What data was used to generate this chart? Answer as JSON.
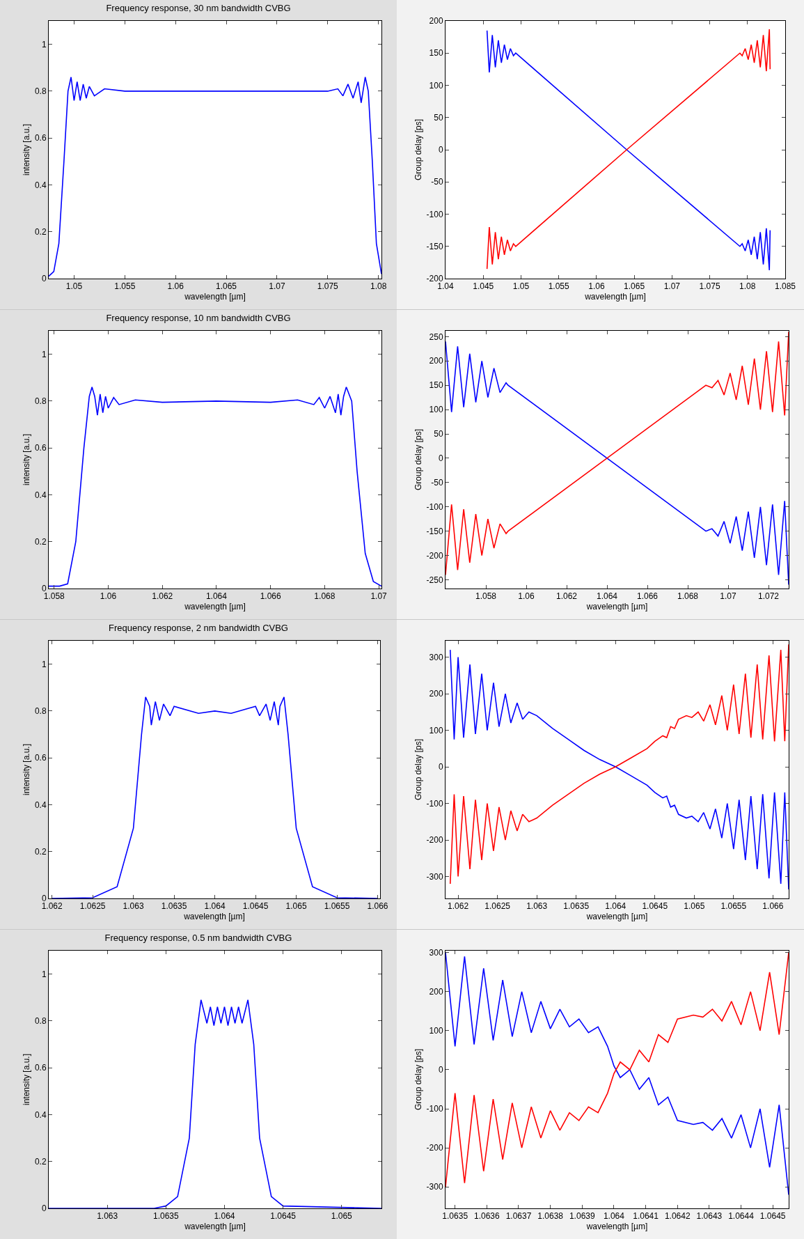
{
  "chart_data": [
    {
      "type": "line",
      "title": "Frequency response, 30 nm bandwidth CVBG",
      "xlabel": "wavelength [µm]",
      "ylabel": "intensity [a.u.]",
      "xlim": [
        1.0475,
        1.0803
      ],
      "xticks": [
        1.05,
        1.055,
        1.06,
        1.065,
        1.07,
        1.075,
        1.08
      ],
      "ylim": [
        0,
        1.1
      ],
      "yticks": [
        0,
        0.2,
        0.4,
        0.6,
        0.8,
        1
      ],
      "x": [
        1.0475,
        1.048,
        1.0485,
        1.049,
        1.0494,
        1.0497,
        1.05,
        1.0503,
        1.0506,
        1.0509,
        1.0512,
        1.0515,
        1.052,
        1.053,
        1.055,
        1.065,
        1.075,
        1.076,
        1.0765,
        1.077,
        1.0775,
        1.078,
        1.0783,
        1.0787,
        1.079,
        1.0794,
        1.0798,
        1.0803
      ],
      "series": [
        {
          "color": "#0000ff",
          "values": [
            0.01,
            0.03,
            0.15,
            0.5,
            0.8,
            0.86,
            0.76,
            0.84,
            0.76,
            0.83,
            0.77,
            0.82,
            0.78,
            0.81,
            0.8,
            0.8,
            0.8,
            0.81,
            0.78,
            0.83,
            0.77,
            0.84,
            0.75,
            0.86,
            0.8,
            0.5,
            0.15,
            0.02
          ]
        }
      ]
    },
    {
      "type": "line",
      "xlabel": "wavelength [µm]",
      "ylabel": "Group delay [ps]",
      "xlim": [
        1.04,
        1.085
      ],
      "xticks": [
        1.04,
        1.045,
        1.05,
        1.055,
        1.06,
        1.065,
        1.07,
        1.075,
        1.08,
        1.085
      ],
      "ylim": [
        -200,
        200
      ],
      "yticks": [
        -200,
        -150,
        -100,
        -50,
        0,
        50,
        100,
        150,
        200
      ],
      "x": [
        1.0455,
        1.0458,
        1.0462,
        1.0466,
        1.047,
        1.0474,
        1.0478,
        1.0482,
        1.0486,
        1.049,
        1.0493,
        1.064,
        1.079,
        1.0793,
        1.0797,
        1.0801,
        1.0805,
        1.0809,
        1.0813,
        1.0817,
        1.0821,
        1.0825,
        1.0829,
        1.083
      ],
      "series": [
        {
          "color": "#0000ff",
          "values": [
            185,
            120,
            178,
            128,
            170,
            135,
            163,
            140,
            157,
            146,
            150,
            0,
            -150,
            -146,
            -157,
            -140,
            -163,
            -135,
            -170,
            -128,
            -178,
            -122,
            -187,
            -125
          ]
        },
        {
          "color": "#ff0000",
          "values": [
            -185,
            -120,
            -178,
            -128,
            -170,
            -135,
            -163,
            -140,
            -157,
            -146,
            -150,
            0,
            150,
            146,
            157,
            140,
            163,
            135,
            170,
            128,
            178,
            122,
            187,
            125
          ]
        }
      ]
    },
    {
      "type": "line",
      "title": "Frequency response, 10 nm bandwidth CVBG",
      "xlabel": "wavelength [µm]",
      "ylabel": "intensity [a.u.]",
      "xlim": [
        1.0578,
        1.0701
      ],
      "xticks": [
        1.058,
        1.06,
        1.062,
        1.064,
        1.066,
        1.068,
        1.07
      ],
      "ylim": [
        0,
        1.1
      ],
      "yticks": [
        0,
        0.2,
        0.4,
        0.6,
        0.8,
        1
      ],
      "x": [
        1.0578,
        1.0582,
        1.0585,
        1.0588,
        1.0591,
        1.0593,
        1.0594,
        1.0595,
        1.0596,
        1.0597,
        1.0598,
        1.0599,
        1.06,
        1.0602,
        1.0604,
        1.061,
        1.062,
        1.064,
        1.066,
        1.067,
        1.0676,
        1.0678,
        1.068,
        1.0682,
        1.0684,
        1.0685,
        1.0686,
        1.0687,
        1.0688,
        1.069,
        1.0692,
        1.0695,
        1.0698,
        1.0701
      ],
      "series": [
        {
          "color": "#0000ff",
          "values": [
            0.01,
            0.01,
            0.02,
            0.2,
            0.6,
            0.82,
            0.86,
            0.82,
            0.74,
            0.83,
            0.75,
            0.82,
            0.77,
            0.815,
            0.785,
            0.805,
            0.795,
            0.8,
            0.795,
            0.805,
            0.785,
            0.815,
            0.77,
            0.82,
            0.75,
            0.83,
            0.74,
            0.82,
            0.86,
            0.8,
            0.5,
            0.15,
            0.03,
            0.01
          ]
        }
      ]
    },
    {
      "type": "line",
      "xlabel": "wavelength [µm]",
      "ylabel": "Group delay [ps]",
      "xlim": [
        1.056,
        1.073
      ],
      "xticks": [
        1.058,
        1.06,
        1.062,
        1.064,
        1.066,
        1.068,
        1.07,
        1.072
      ],
      "ylim": [
        -268,
        262
      ],
      "yticks": [
        -250,
        -200,
        -150,
        -100,
        -50,
        0,
        50,
        100,
        150,
        200,
        250
      ],
      "x": [
        1.056,
        1.0563,
        1.0566,
        1.0569,
        1.0572,
        1.0575,
        1.0578,
        1.0581,
        1.0584,
        1.0587,
        1.059,
        1.0591,
        1.064,
        1.0689,
        1.0692,
        1.0695,
        1.0698,
        1.0701,
        1.0704,
        1.0707,
        1.071,
        1.0713,
        1.0716,
        1.0719,
        1.0722,
        1.0725,
        1.0728,
        1.073
      ],
      "series": [
        {
          "color": "#0000ff",
          "values": [
            240,
            95,
            230,
            105,
            215,
            115,
            200,
            125,
            185,
            135,
            155,
            150,
            0,
            -150,
            -145,
            -160,
            -130,
            -175,
            -120,
            -190,
            -110,
            -205,
            -100,
            -220,
            -95,
            -240,
            -88,
            -260
          ]
        },
        {
          "color": "#ff0000",
          "values": [
            -240,
            -95,
            -230,
            -105,
            -215,
            -115,
            -200,
            -125,
            -185,
            -135,
            -155,
            -150,
            0,
            150,
            145,
            160,
            130,
            175,
            120,
            190,
            110,
            205,
            100,
            220,
            95,
            240,
            88,
            260
          ]
        }
      ]
    },
    {
      "type": "line",
      "title": "Frequency response, 2 nm bandwidth CVBG",
      "xlabel": "wavelength [µm]",
      "ylabel": "intensity [a.u.]",
      "xlim": [
        1.06196,
        1.06603
      ],
      "xticks": [
        1.062,
        1.0625,
        1.063,
        1.0635,
        1.064,
        1.0645,
        1.065,
        1.0655,
        1.066
      ],
      "ylim": [
        0,
        1.1
      ],
      "yticks": [
        0,
        0.2,
        0.4,
        0.6,
        0.8,
        1
      ],
      "x": [
        1.062,
        1.0625,
        1.0628,
        1.063,
        1.0631,
        1.06315,
        1.0632,
        1.06322,
        1.06327,
        1.06332,
        1.06337,
        1.06345,
        1.0635,
        1.0638,
        1.064,
        1.0642,
        1.0645,
        1.06455,
        1.06463,
        1.06468,
        1.06473,
        1.06478,
        1.0648,
        1.06485,
        1.0649,
        1.065,
        1.0652,
        1.0655,
        1.066
      ],
      "series": [
        {
          "color": "#0000ff",
          "values": [
            0,
            0.003,
            0.05,
            0.3,
            0.7,
            0.86,
            0.82,
            0.74,
            0.84,
            0.76,
            0.83,
            0.78,
            0.82,
            0.79,
            0.8,
            0.79,
            0.82,
            0.78,
            0.83,
            0.76,
            0.84,
            0.74,
            0.82,
            0.86,
            0.7,
            0.3,
            0.05,
            0.003,
            0
          ]
        }
      ]
    },
    {
      "type": "line",
      "xlabel": "wavelength [µm]",
      "ylabel": "Group delay [ps]",
      "xlim": [
        1.06184,
        1.0662
      ],
      "xticks": [
        1.062,
        1.0625,
        1.063,
        1.0635,
        1.064,
        1.0645,
        1.065,
        1.0655,
        1.066
      ],
      "ylim": [
        -360,
        345
      ],
      "yticks": [
        -300,
        -200,
        -100,
        0,
        100,
        200,
        300
      ],
      "x": [
        1.0619,
        1.06195,
        1.062,
        1.06207,
        1.06215,
        1.06222,
        1.0623,
        1.06237,
        1.06245,
        1.06252,
        1.0626,
        1.06267,
        1.06275,
        1.06282,
        1.0629,
        1.063,
        1.0632,
        1.0634,
        1.0636,
        1.0638,
        1.064,
        1.0642,
        1.0644,
        1.0645,
        1.0646,
        1.06465,
        1.0647,
        1.06475,
        1.0648,
        1.0649,
        1.06497,
        1.06505,
        1.06512,
        1.0652,
        1.06527,
        1.06535,
        1.06542,
        1.0655,
        1.06557,
        1.06565,
        1.06572,
        1.0658,
        1.06587,
        1.06595,
        1.06602,
        1.0661,
        1.06615,
        1.0662
      ],
      "series": [
        {
          "color": "#0000ff",
          "values": [
            320,
            75,
            300,
            80,
            280,
            90,
            255,
            100,
            230,
            110,
            200,
            120,
            175,
            130,
            150,
            140,
            105,
            75,
            45,
            20,
            0,
            -25,
            -50,
            -70,
            -85,
            -80,
            -110,
            -105,
            -130,
            -140,
            -135,
            -150,
            -125,
            -170,
            -115,
            -195,
            -100,
            -225,
            -90,
            -255,
            -80,
            -280,
            -75,
            -305,
            -70,
            -320,
            -70,
            -335
          ]
        },
        {
          "color": "#ff0000",
          "values": [
            -320,
            -75,
            -300,
            -80,
            -280,
            -90,
            -255,
            -100,
            -230,
            -110,
            -200,
            -120,
            -175,
            -130,
            -150,
            -140,
            -105,
            -75,
            -45,
            -20,
            0,
            25,
            50,
            70,
            85,
            80,
            110,
            105,
            130,
            140,
            135,
            150,
            125,
            170,
            115,
            195,
            100,
            225,
            90,
            255,
            80,
            280,
            75,
            305,
            70,
            320,
            70,
            335
          ]
        }
      ]
    },
    {
      "type": "line",
      "title": "Frequency response, 0.5 nm bandwidth CVBG",
      "xlabel": "wavelength [µm]",
      "ylabel": "intensity [a.u.]",
      "xlim": [
        1.0625,
        1.06534
      ],
      "xticks": [
        1.063,
        1.0635,
        1.064,
        1.0645,
        1.065
      ],
      "ylim": [
        0,
        1.1
      ],
      "yticks": [
        0,
        0.2,
        0.4,
        0.6,
        0.8,
        1
      ],
      "x": [
        1.0625,
        1.0634,
        1.0635,
        1.0636,
        1.0637,
        1.06375,
        1.0638,
        1.06385,
        1.06388,
        1.06391,
        1.06394,
        1.06397,
        1.064,
        1.06403,
        1.06406,
        1.06409,
        1.06412,
        1.06415,
        1.0642,
        1.06425,
        1.0643,
        1.0644,
        1.0645,
        1.06534
      ],
      "series": [
        {
          "color": "#0000ff",
          "values": [
            0,
            0,
            0.01,
            0.05,
            0.3,
            0.7,
            0.89,
            0.79,
            0.86,
            0.78,
            0.86,
            0.79,
            0.86,
            0.78,
            0.86,
            0.79,
            0.86,
            0.79,
            0.89,
            0.7,
            0.3,
            0.05,
            0.01,
            0
          ]
        }
      ]
    },
    {
      "type": "line",
      "xlabel": "wavelength [µm]",
      "ylabel": "Group delay [ps]",
      "xlim": [
        1.06347,
        1.06455
      ],
      "xticks": [
        1.0635,
        1.0636,
        1.0637,
        1.0638,
        1.0639,
        1.064,
        1.0641,
        1.0642,
        1.0643,
        1.0644,
        1.0645
      ],
      "ylim": [
        -355,
        305
      ],
      "yticks": [
        -300,
        -200,
        -100,
        0,
        100,
        200,
        300
      ],
      "x": [
        1.06347,
        1.0635,
        1.06353,
        1.06356,
        1.06359,
        1.06362,
        1.06365,
        1.06368,
        1.06371,
        1.06374,
        1.06377,
        1.0638,
        1.06383,
        1.06386,
        1.06389,
        1.06392,
        1.06395,
        1.06398,
        1.064,
        1.06402,
        1.06405,
        1.06408,
        1.06411,
        1.06414,
        1.06417,
        1.0642,
        1.06425,
        1.06428,
        1.06431,
        1.06434,
        1.06437,
        1.0644,
        1.06443,
        1.06446,
        1.06449,
        1.06452,
        1.06455
      ],
      "series": [
        {
          "color": "#0000ff",
          "values": [
            300,
            60,
            290,
            65,
            260,
            75,
            230,
            85,
            200,
            95,
            175,
            105,
            155,
            110,
            130,
            95,
            110,
            60,
            10,
            -20,
            0,
            -50,
            -20,
            -90,
            -70,
            -130,
            -140,
            -135,
            -155,
            -125,
            -175,
            -115,
            -200,
            -100,
            -250,
            -90,
            -320
          ]
        },
        {
          "color": "#ff0000",
          "values": [
            -300,
            -60,
            -290,
            -65,
            -260,
            -75,
            -230,
            -85,
            -200,
            -95,
            -175,
            -105,
            -155,
            -110,
            -130,
            -95,
            -110,
            -60,
            -10,
            20,
            0,
            50,
            20,
            90,
            70,
            130,
            140,
            135,
            155,
            125,
            175,
            115,
            200,
            100,
            250,
            90,
            300
          ]
        }
      ]
    }
  ]
}
